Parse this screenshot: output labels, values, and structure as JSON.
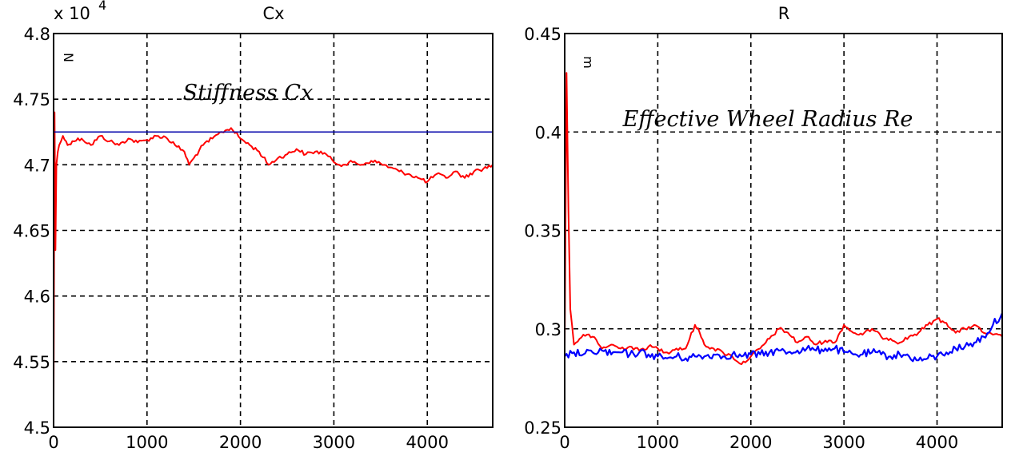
{
  "chart_data": [
    {
      "type": "line",
      "title": "Cx",
      "exponent_label": "x 10",
      "exponent_sup": "4",
      "unit_label": "N",
      "annotation": "Stiffness Cx",
      "xlim": [
        0,
        4700
      ],
      "ylim": [
        45000,
        48000
      ],
      "x_ticks": [
        0,
        1000,
        2000,
        3000,
        4000
      ],
      "x_tick_labels": [
        "0",
        "1000",
        "2000",
        "3000",
        "4000"
      ],
      "y_ticks": [
        45000,
        45500,
        46000,
        46500,
        47000,
        47500,
        48000
      ],
      "y_tick_labels": [
        "4.5",
        "4.55",
        "4.6",
        "4.65",
        "4.7",
        "4.75",
        "4.8"
      ],
      "grid": true,
      "series": [
        {
          "color": "#ff0000",
          "x": [
            0,
            10,
            20,
            30,
            45,
            60,
            80,
            100,
            150,
            200,
            300,
            400,
            500,
            600,
            700,
            800,
            900,
            1000,
            1100,
            1200,
            1300,
            1400,
            1450,
            1500,
            1600,
            1700,
            1800,
            1900,
            2000,
            2100,
            2200,
            2300,
            2400,
            2500,
            2600,
            2700,
            2800,
            2900,
            3000,
            3100,
            3200,
            3300,
            3400,
            3500,
            3600,
            3700,
            3800,
            3900,
            4000,
            4100,
            4200,
            4300,
            4400,
            4500,
            4600,
            4700
          ],
          "y": [
            45200,
            47400,
            46350,
            47000,
            47100,
            47150,
            47180,
            47220,
            47150,
            47180,
            47200,
            47150,
            47220,
            47180,
            47150,
            47200,
            47170,
            47190,
            47220,
            47210,
            47150,
            47100,
            47000,
            47050,
            47150,
            47200,
            47250,
            47280,
            47200,
            47150,
            47100,
            47000,
            47050,
            47080,
            47120,
            47080,
            47100,
            47090,
            47020,
            47000,
            47020,
            47000,
            47030,
            47010,
            46980,
            46950,
            46930,
            46900,
            46870,
            46930,
            46900,
            46950,
            46900,
            46950,
            46970,
            47000
          ]
        },
        {
          "color": "#0000aa",
          "x": [
            0,
            4700
          ],
          "y": [
            47250,
            47250
          ]
        }
      ]
    },
    {
      "type": "line",
      "title": "R",
      "unit_label": "m",
      "annotation": "Effective Wheel Radius Re",
      "xlim": [
        0,
        4700
      ],
      "ylim": [
        0.25,
        0.45
      ],
      "x_ticks": [
        0,
        1000,
        2000,
        3000,
        4000
      ],
      "x_tick_labels": [
        "0",
        "1000",
        "2000",
        "3000",
        "4000"
      ],
      "y_ticks": [
        0.25,
        0.3,
        0.35,
        0.4,
        0.45
      ],
      "y_tick_labels": [
        "0.25",
        "0.3",
        "0.35",
        "0.4",
        "0.45"
      ],
      "grid": true,
      "series": [
        {
          "color": "#ff0000",
          "x": [
            0,
            20,
            40,
            60,
            100,
            200,
            300,
            400,
            500,
            600,
            700,
            800,
            900,
            1000,
            1100,
            1200,
            1300,
            1400,
            1450,
            1500,
            1600,
            1700,
            1800,
            1900,
            2000,
            2100,
            2200,
            2300,
            2400,
            2500,
            2600,
            2700,
            2800,
            2900,
            3000,
            3100,
            3200,
            3300,
            3400,
            3500,
            3600,
            3700,
            3800,
            3900,
            4000,
            4100,
            4200,
            4300,
            4400,
            4500,
            4600,
            4700
          ],
          "y": [
            0.29,
            0.43,
            0.36,
            0.31,
            0.292,
            0.297,
            0.296,
            0.29,
            0.292,
            0.29,
            0.291,
            0.289,
            0.291,
            0.29,
            0.288,
            0.29,
            0.29,
            0.302,
            0.298,
            0.292,
            0.29,
            0.288,
            0.286,
            0.282,
            0.286,
            0.29,
            0.295,
            0.3,
            0.298,
            0.293,
            0.296,
            0.292,
            0.294,
            0.293,
            0.302,
            0.298,
            0.297,
            0.3,
            0.296,
            0.295,
            0.293,
            0.296,
            0.298,
            0.302,
            0.305,
            0.303,
            0.298,
            0.3,
            0.302,
            0.298,
            0.297,
            0.296
          ]
        },
        {
          "color": "#0000ff",
          "x": [
            0,
            100,
            200,
            300,
            400,
            500,
            600,
            700,
            800,
            900,
            1000,
            1100,
            1200,
            1300,
            1400,
            1500,
            1600,
            1700,
            1800,
            1900,
            2000,
            2100,
            2200,
            2300,
            2400,
            2500,
            2600,
            2700,
            2800,
            2900,
            3000,
            3100,
            3200,
            3300,
            3400,
            3500,
            3600,
            3700,
            3800,
            3900,
            4000,
            4100,
            4200,
            4300,
            4400,
            4500,
            4600,
            4700
          ],
          "y": [
            0.286,
            0.288,
            0.287,
            0.288,
            0.289,
            0.287,
            0.288,
            0.287,
            0.288,
            0.287,
            0.286,
            0.285,
            0.286,
            0.285,
            0.286,
            0.286,
            0.287,
            0.286,
            0.287,
            0.286,
            0.287,
            0.287,
            0.288,
            0.289,
            0.288,
            0.289,
            0.29,
            0.289,
            0.29,
            0.29,
            0.288,
            0.287,
            0.287,
            0.288,
            0.287,
            0.286,
            0.287,
            0.286,
            0.284,
            0.285,
            0.286,
            0.288,
            0.29,
            0.291,
            0.293,
            0.296,
            0.302,
            0.308
          ]
        }
      ]
    }
  ]
}
